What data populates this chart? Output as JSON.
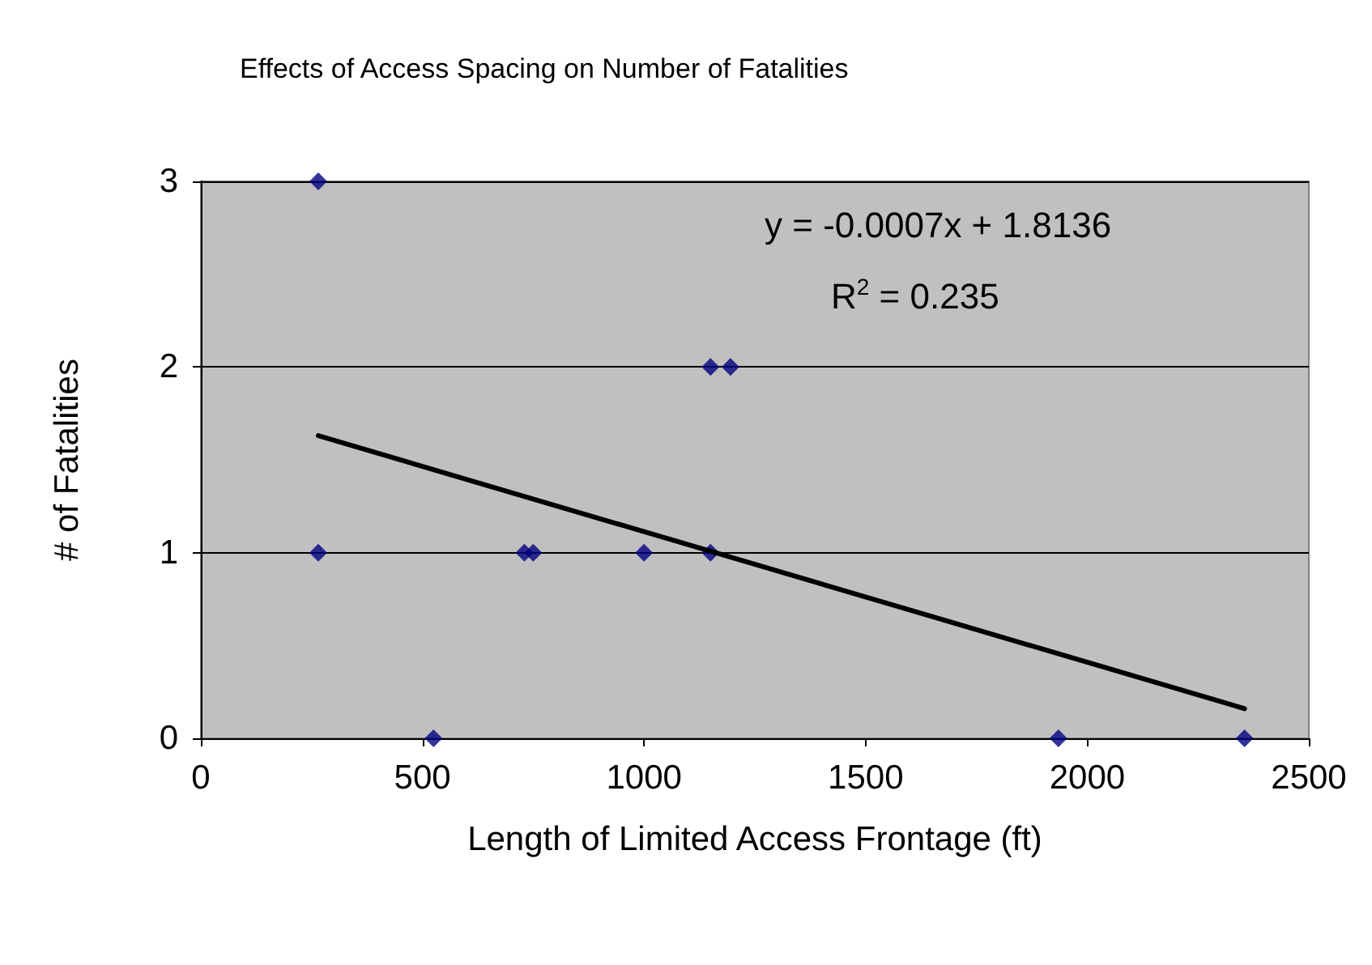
{
  "chart_data": {
    "type": "scatter",
    "title": "Effects of Access Spacing on Number of Fatalities",
    "xlabel": "Length of Limited Access Frontage (ft)",
    "ylabel": "# of Fatalities",
    "series": [
      {
        "color": "#000080",
        "x": [
          265,
          265,
          525,
          730,
          750,
          1000,
          1150,
          1195,
          1150,
          1935,
          2355
        ],
        "values": [
          3,
          1,
          0,
          1,
          1,
          1,
          2,
          2,
          1,
          0,
          0
        ]
      },
      {
        "type": "line",
        "color": "#000000",
        "x": [
          265,
          2355
        ],
        "values": [
          1.63,
          0.16
        ],
        "marker": "none",
        "line_style": "solid"
      }
    ],
    "annotations": [
      "y = -0.0007x + 1.8136",
      "R$^{2}$ = 0.235"
    ],
    "xlim": [
      0,
      2500
    ],
    "xticks": [
      0,
      500,
      1000,
      1500,
      2000,
      2500
    ],
    "ylim": [
      0,
      3
    ],
    "yticks": [
      0,
      1,
      2,
      3
    ],
    "grid": "y",
    "marker": "diamond"
  }
}
